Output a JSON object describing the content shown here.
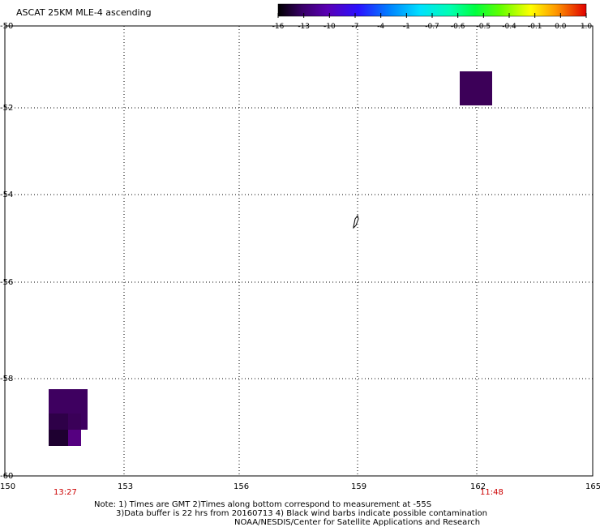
{
  "title": "ASCAT 25KM MLE-4 ascending",
  "colorbar": {
    "tick_labels": [
      "-16",
      "-13",
      "-10",
      "-7",
      "-4",
      "-1",
      "-0.7",
      "-0.6",
      "-0.5",
      "-0.4",
      "-0.1",
      "0.0",
      "1.0"
    ],
    "colors": [
      "#000000",
      "#3a006a",
      "#5a00b4",
      "#2a10ff",
      "#0080ff",
      "#00e0ff",
      "#00ffb0",
      "#00ff40",
      "#60ff00",
      "#ffff00",
      "#ff9a00",
      "#ff3000",
      "#e00000"
    ]
  },
  "lat_labels": [
    "-50",
    "-52",
    "-54",
    "-56",
    "-58",
    "-60"
  ],
  "lon_labels": [
    "150",
    "153",
    "156",
    "159",
    "162",
    "165"
  ],
  "times": [
    {
      "label": "13:27",
      "color": "#cc0000"
    },
    {
      "label": "11:48",
      "color": "#cc0000"
    }
  ],
  "notes": [
    "Note: 1) Times are GMT 2)Times along bottom correspond to measurement at -55S",
    "3)Data buffer is 22 hrs from 20160713 4) Black wind barbs indicate possible contamination",
    "NOAA/NESDIS/Center for Satellite Applications and Research"
  ],
  "grid": true,
  "fill_colors": {
    "dark": "#2a0040",
    "mid": "#3e0060",
    "light": "#550080"
  }
}
